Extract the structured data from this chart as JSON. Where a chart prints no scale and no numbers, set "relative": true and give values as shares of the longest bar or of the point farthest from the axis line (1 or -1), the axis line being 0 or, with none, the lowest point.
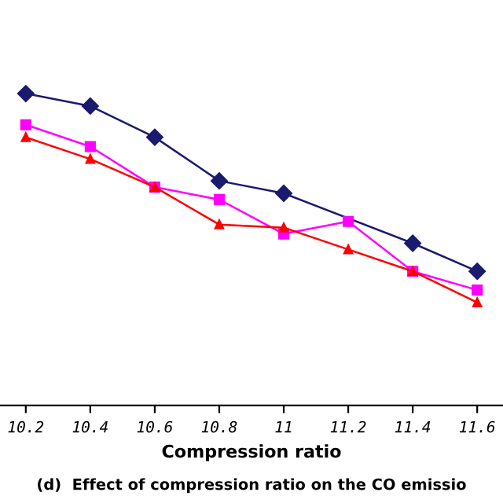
{
  "chart_data": {
    "type": "line",
    "relative": true,
    "xlabel": "Compression ratio",
    "annotations": [
      "(d)  Effect of compression ratio on the CO emissio"
    ],
    "xlim": [
      10.12,
      11.68
    ],
    "xticks": [
      10.2,
      10.4,
      10.6,
      10.8,
      11,
      11.2,
      11.4,
      11.6
    ],
    "grid": false,
    "legend": false,
    "tick_labels": "x",
    "series": [
      {
        "color": "#1a1a6e",
        "marker": "diamond",
        "x": [
          10.2,
          10.4,
          10.6,
          10.8,
          11,
          11.4,
          11.6
        ],
        "values": [
          1,
          0.96,
          0.86,
          0.72,
          0.68,
          0.52,
          0.43
        ]
      },
      {
        "color": "#ff00ff",
        "marker": "square",
        "x": [
          10.2,
          10.4,
          10.6,
          10.8,
          11,
          11.2,
          11.4,
          11.6
        ],
        "values": [
          0.9,
          0.83,
          0.7,
          0.66,
          0.55,
          0.59,
          0.43,
          0.37
        ]
      },
      {
        "color": "#ff0000",
        "marker": "triangle",
        "x": [
          10.2,
          10.4,
          10.6,
          10.8,
          11,
          11.2,
          11.4,
          11.6
        ],
        "values": [
          0.86,
          0.79,
          0.7,
          0.58,
          0.57,
          0.5,
          0.43,
          0.33
        ]
      }
    ]
  }
}
